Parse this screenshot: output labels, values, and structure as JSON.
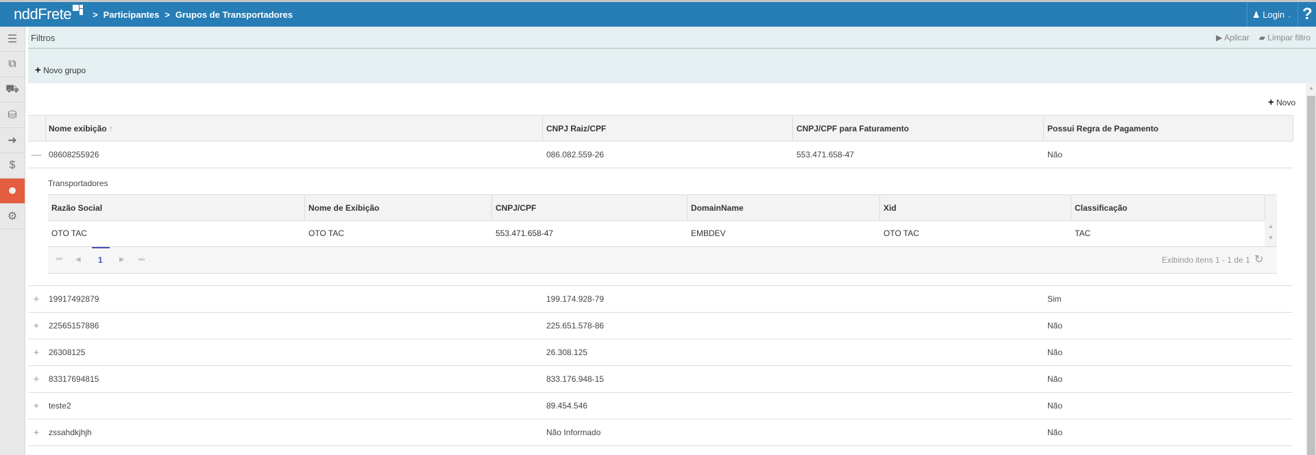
{
  "header": {
    "logo": "nddFrete",
    "breadcrumb": [
      "Participantes",
      "Grupos de Transportadores"
    ],
    "login": "Login",
    "help": "?",
    "color": "#277db5"
  },
  "sidebar": {
    "items": [
      {
        "icon": "menu-icon"
      },
      {
        "icon": "documents-icon"
      },
      {
        "icon": "truck-icon"
      },
      {
        "icon": "truck-outline-icon"
      },
      {
        "icon": "export-icon"
      },
      {
        "icon": "payment-icon"
      },
      {
        "icon": "users-icon",
        "active": true
      },
      {
        "icon": "gears-icon"
      }
    ],
    "active_color": "#e35d3f"
  },
  "filters": {
    "title": "Filtros",
    "apply": "Aplicar",
    "clear": "Limpar filtro",
    "new_group": "Novo grupo"
  },
  "toolbar": {
    "new": "Novo"
  },
  "table": {
    "columns": [
      "Nome exibição",
      "CNPJ Raiz/CPF",
      "CNPJ/CPF para Faturamento",
      "Possui Regra de Pagamento"
    ],
    "sort_indicator": "↑",
    "rows": [
      {
        "expanded": true,
        "nome": "08608255926",
        "cnpj": "086.082.559-26",
        "faturamento": "553.471.658-47",
        "regra": "Não"
      },
      {
        "nome": "19917492879",
        "cnpj": "199.174.928-79",
        "faturamento": "",
        "regra": "Sim"
      },
      {
        "nome": "22565157886",
        "cnpj": "225.651.578-86",
        "faturamento": "",
        "regra": "Não"
      },
      {
        "nome": "26308125",
        "cnpj": "26.308.125",
        "faturamento": "",
        "regra": "Não"
      },
      {
        "nome": "83317694815",
        "cnpj": "833.176.948-15",
        "faturamento": "",
        "regra": "Não"
      },
      {
        "nome": "teste2",
        "cnpj": "89.454.546",
        "faturamento": "",
        "regra": "Não"
      },
      {
        "nome": "zssahdkjhjh",
        "cnpj": "Não Informado",
        "faturamento": "",
        "regra": "Não"
      }
    ]
  },
  "detail": {
    "title": "Transportadores",
    "columns": [
      "Razão Social",
      "Nome de Exibição",
      "CNPJ/CPF",
      "DomainName",
      "Xid",
      "Classificação"
    ],
    "rows": [
      [
        "OTO TAC",
        "OTO TAC",
        "553.471.658-47",
        "EMBDEV",
        "OTO TAC",
        "TAC"
      ]
    ],
    "pager": {
      "page": "1",
      "info": "Exibindo itens 1 - 1 de 1"
    }
  }
}
